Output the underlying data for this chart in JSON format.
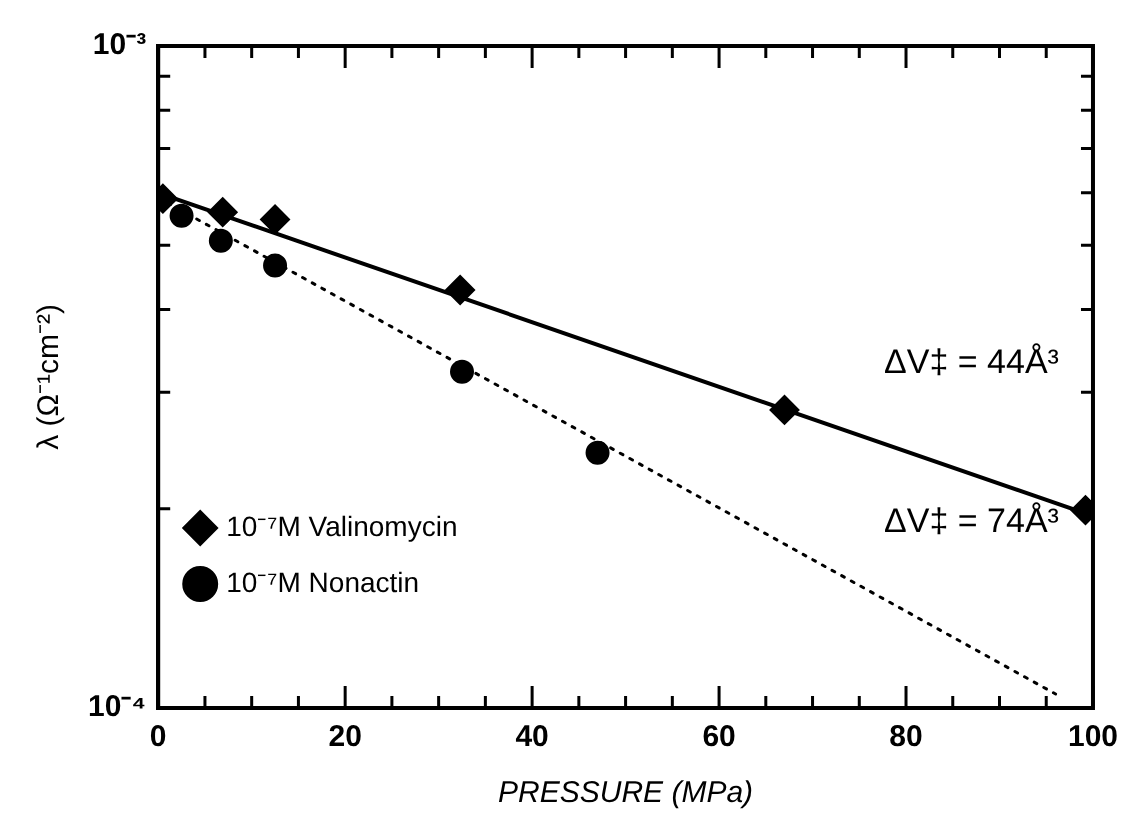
{
  "chart_data": {
    "type": "scatter",
    "xlabel": "PRESSURE (MPa)",
    "ylabel": "λ (Ω⁻¹cm⁻²)",
    "xlim": [
      0,
      100
    ],
    "ylim": [
      0.0001,
      0.001
    ],
    "log": "y",
    "grid": false,
    "legend": "bottom left",
    "xticks": [
      0,
      {
        "value": 5,
        "label": null
      },
      {
        "value": 10,
        "label": null
      },
      {
        "value": 15,
        "label": null
      },
      20,
      {
        "value": 25,
        "label": null
      },
      {
        "value": 30,
        "label": null
      },
      {
        "value": 35,
        "label": null
      },
      40,
      {
        "value": 45,
        "label": null
      },
      {
        "value": 50,
        "label": null
      },
      {
        "value": 55,
        "label": null
      },
      60,
      {
        "value": 65,
        "label": null
      },
      {
        "value": 70,
        "label": null
      },
      {
        "value": 75,
        "label": null
      },
      80,
      {
        "value": 85,
        "label": null
      },
      {
        "value": 90,
        "label": null
      },
      {
        "value": 95,
        "label": null
      },
      100
    ],
    "yticks": [
      {
        "value": 0.0001,
        "label": "10⁻⁴"
      },
      {
        "value": 0.0002,
        "label": null
      },
      {
        "value": 0.0003,
        "label": null
      },
      {
        "value": 0.0004,
        "label": null
      },
      {
        "value": 0.0005,
        "label": null
      },
      {
        "value": 0.0006,
        "label": null
      },
      {
        "value": 0.0007,
        "label": null
      },
      {
        "value": 0.0008,
        "label": null
      },
      {
        "value": 0.0009,
        "label": null
      },
      {
        "value": 0.001,
        "label": "10⁻³"
      }
    ],
    "series": [
      {
        "name": "10⁻⁷M Valinomycin",
        "marker": "diamond",
        "line_style": "solid",
        "color": "#000000",
        "x": [
          0.5,
          6.9,
          12.5,
          32.3,
          67,
          99.2
        ],
        "values": [
          0.000588,
          0.000561,
          0.000547,
          0.000428,
          0.000282,
          0.000199
        ]
      },
      {
        "type": "line",
        "marker": "none",
        "line_style": "solid",
        "color": "#000000",
        "x": [
          0,
          100
        ],
        "values": [
          0.0006,
          0.000195
        ]
      },
      {
        "name": "10⁻⁷M Nonactin",
        "marker": "circle",
        "line_style": "dotted",
        "color": "#000000",
        "x": [
          2.5,
          6.7,
          12.5,
          32.5,
          47
        ],
        "values": [
          0.000554,
          0.000508,
          0.000466,
          0.000322,
          0.000243
        ]
      },
      {
        "type": "line",
        "marker": "none",
        "line_style": "dotted",
        "color": "#000000",
        "x": [
          0,
          96
        ],
        "values": [
          0.00059,
          0.000105
        ]
      }
    ],
    "annotations": [
      "ΔV‡ = 44Å³",
      "ΔV‡ = 74Å³"
    ]
  }
}
